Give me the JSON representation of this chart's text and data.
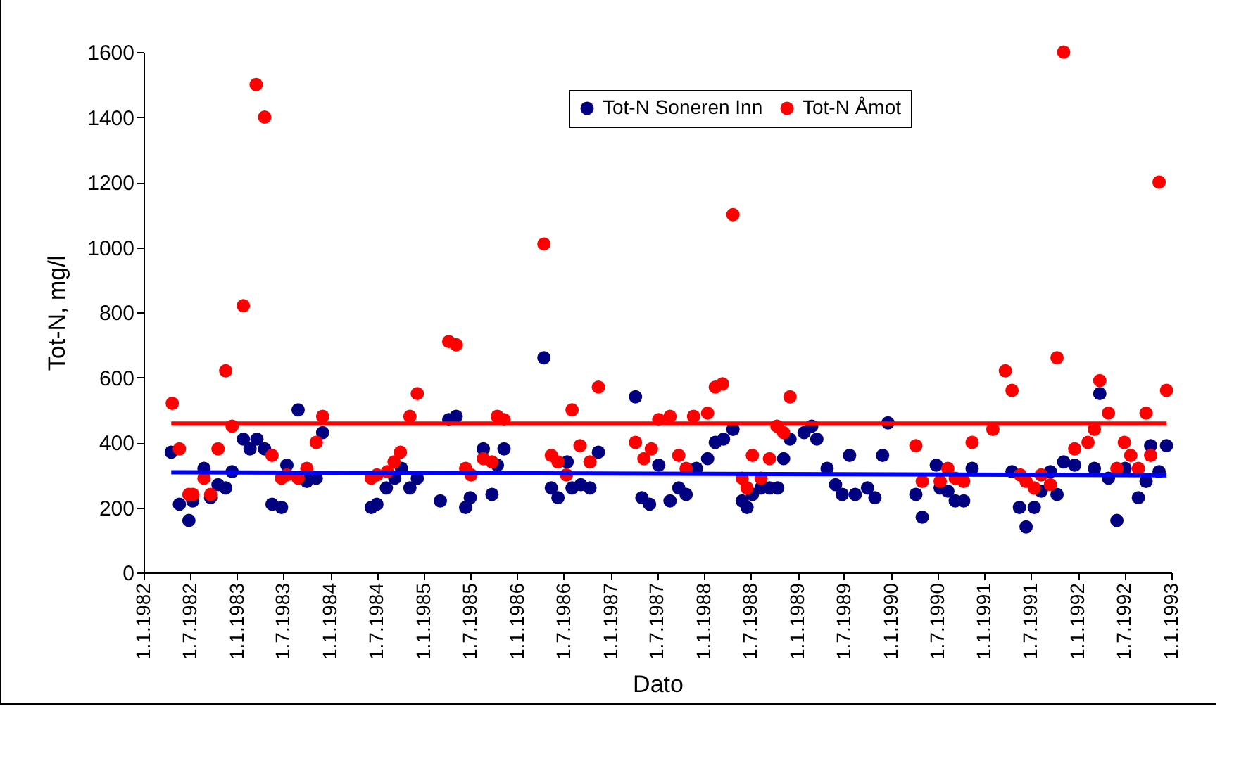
{
  "chart_data": {
    "type": "scatter",
    "xlabel": "Dato",
    "ylabel": "Tot-N, mg/l",
    "xlim": [
      "1982-01-01",
      "1993-01-01"
    ],
    "xticks": [
      {
        "value": "1982-01-01",
        "label": "1.1.1982"
      },
      {
        "value": "1982-07-01",
        "label": "1.7.1982"
      },
      {
        "value": "1983-01-01",
        "label": "1.1.1983"
      },
      {
        "value": "1983-07-01",
        "label": "1.7.1983"
      },
      {
        "value": "1984-01-01",
        "label": "1.1.1984"
      },
      {
        "value": "1984-07-01",
        "label": "1.7.1984"
      },
      {
        "value": "1985-01-01",
        "label": "1.1.1985"
      },
      {
        "value": "1985-07-01",
        "label": "1.7.1985"
      },
      {
        "value": "1986-01-01",
        "label": "1.1.1986"
      },
      {
        "value": "1986-07-01",
        "label": "1.7.1986"
      },
      {
        "value": "1987-01-01",
        "label": "1.1.1987"
      },
      {
        "value": "1987-07-01",
        "label": "1.7.1987"
      },
      {
        "value": "1988-01-01",
        "label": "1.1.1988"
      },
      {
        "value": "1988-07-01",
        "label": "1.7.1988"
      },
      {
        "value": "1989-01-01",
        "label": "1.1.1989"
      },
      {
        "value": "1989-07-01",
        "label": "1.7.1989"
      },
      {
        "value": "1990-01-01",
        "label": "1.1.1990"
      },
      {
        "value": "1990-07-01",
        "label": "1.7.1990"
      },
      {
        "value": "1991-01-01",
        "label": "1.1.1991"
      },
      {
        "value": "1991-07-01",
        "label": "1.7.1991"
      },
      {
        "value": "1992-01-01",
        "label": "1.1.1992"
      },
      {
        "value": "1992-07-01",
        "label": "1.7.1992"
      },
      {
        "value": "1993-01-01",
        "label": "1.1.1993"
      }
    ],
    "ylim": [
      0,
      1600
    ],
    "yticks": [
      0,
      200,
      400,
      600,
      800,
      1000,
      1200,
      1400,
      1600
    ],
    "grid": false,
    "legend": "top right",
    "marker": "circle",
    "series": [
      {
        "name": "Tot-N Soneren Inn",
        "color": "#000080",
        "type": "scatter",
        "x": [
          "1982-04-19",
          "1982-05-21",
          "1982-06-27",
          "1982-07-12",
          "1982-08-25",
          "1982-09-20",
          "1982-10-19",
          "1982-11-18",
          "1982-12-13",
          "1983-01-26",
          "1983-02-21",
          "1983-03-20",
          "1983-04-19",
          "1983-05-18",
          "1983-06-24",
          "1983-07-15",
          "1983-08-28",
          "1983-10-01",
          "1983-11-07",
          "1983-12-02",
          "1984-06-09",
          "1984-07-01",
          "1984-08-07",
          "1984-09-09",
          "1984-10-05",
          "1984-11-07",
          "1984-12-06",
          "1985-03-06",
          "1985-04-08",
          "1985-05-07",
          "1985-06-13",
          "1985-07-01",
          "1985-08-21",
          "1985-09-24",
          "1985-10-15",
          "1985-11-10",
          "1986-04-15",
          "1986-05-14",
          "1986-06-09",
          "1986-07-15",
          "1986-08-03",
          "1986-09-06",
          "1986-10-12",
          "1986-11-14",
          "1987-04-08",
          "1987-05-03",
          "1987-06-02",
          "1987-07-08",
          "1987-08-21",
          "1987-09-24",
          "1987-10-23",
          "1987-12-02",
          "1988-01-15",
          "1988-02-14",
          "1988-03-17",
          "1988-04-23",
          "1988-05-29",
          "1988-06-17",
          "1988-07-08",
          "1988-08-11",
          "1988-09-13",
          "1988-10-15",
          "1988-11-07",
          "1988-12-02",
          "1989-01-26",
          "1989-02-25",
          "1989-03-17",
          "1989-04-26",
          "1989-05-29",
          "1989-06-24",
          "1989-07-23",
          "1989-08-14",
          "1989-10-01",
          "1989-10-30",
          "1989-11-29",
          "1989-12-20",
          "1990-04-08",
          "1990-05-03",
          "1990-06-27",
          "1990-07-12",
          "1990-08-11",
          "1990-09-09",
          "1990-10-12",
          "1990-11-14",
          "1991-04-19",
          "1991-05-18",
          "1991-06-13",
          "1991-07-15",
          "1991-08-11",
          "1991-09-16",
          "1991-10-12",
          "1991-11-07",
          "1991-12-20",
          "1992-03-06",
          "1992-03-27",
          "1992-04-30",
          "1992-06-02",
          "1992-07-04",
          "1992-08-25",
          "1992-09-24",
          "1992-10-12",
          "1992-11-14",
          "1992-12-13"
        ],
        "values": [
          370,
          210,
          160,
          220,
          320,
          230,
          270,
          260,
          310,
          410,
          380,
          410,
          380,
          210,
          200,
          330,
          500,
          280,
          290,
          430,
          200,
          210,
          260,
          290,
          320,
          260,
          290,
          220,
          470,
          480,
          200,
          230,
          380,
          240,
          330,
          380,
          660,
          260,
          230,
          340,
          260,
          270,
          260,
          370,
          540,
          230,
          210,
          330,
          220,
          260,
          240,
          320,
          350,
          400,
          410,
          440,
          220,
          200,
          240,
          260,
          260,
          260,
          350,
          410,
          430,
          450,
          410,
          320,
          270,
          240,
          360,
          240,
          260,
          230,
          360,
          460,
          240,
          170,
          330,
          260,
          250,
          220,
          220,
          320,
          310,
          200,
          140,
          200,
          250,
          310,
          240,
          340,
          330,
          320,
          550,
          290,
          160,
          320,
          230,
          280,
          390,
          310,
          390
        ]
      },
      {
        "name": "Tot-N Åmot",
        "color": "#ff0000",
        "type": "scatter",
        "x": [
          "1982-04-23",
          "1982-05-21",
          "1982-06-27",
          "1982-07-12",
          "1982-08-25",
          "1982-09-20",
          "1982-10-19",
          "1982-11-18",
          "1982-12-13",
          "1983-01-26",
          "1983-03-17",
          "1983-04-19",
          "1983-05-18",
          "1983-06-24",
          "1983-07-15",
          "1983-08-28",
          "1983-10-01",
          "1983-11-07",
          "1983-12-02",
          "1984-06-09",
          "1984-07-01",
          "1984-08-11",
          "1984-09-06",
          "1984-10-01",
          "1984-11-07",
          "1984-12-06",
          "1985-04-08",
          "1985-05-07",
          "1985-06-13",
          "1985-07-04",
          "1985-08-21",
          "1985-09-24",
          "1985-10-15",
          "1985-11-10",
          "1986-04-15",
          "1986-05-14",
          "1986-06-09",
          "1986-07-12",
          "1986-08-03",
          "1986-09-03",
          "1986-10-12",
          "1986-11-14",
          "1987-04-08",
          "1987-05-11",
          "1987-06-09",
          "1987-07-08",
          "1987-08-21",
          "1987-09-24",
          "1987-10-23",
          "1987-11-21",
          "1988-01-15",
          "1988-02-14",
          "1988-03-13",
          "1988-04-23",
          "1988-05-29",
          "1988-06-17",
          "1988-07-08",
          "1988-08-11",
          "1988-09-13",
          "1988-10-12",
          "1988-11-07",
          "1988-12-02",
          "1990-04-08",
          "1990-05-03",
          "1990-07-12",
          "1990-08-11",
          "1990-09-09",
          "1990-10-12",
          "1990-11-14",
          "1991-02-03",
          "1991-03-24",
          "1991-04-19",
          "1991-05-21",
          "1991-06-13",
          "1991-07-15",
          "1991-08-11",
          "1991-09-16",
          "1991-10-12",
          "1991-11-07",
          "1991-12-20",
          "1992-02-10",
          "1992-03-06",
          "1992-03-27",
          "1992-04-30",
          "1992-06-02",
          "1992-07-01",
          "1992-07-26",
          "1992-08-25",
          "1992-09-24",
          "1992-10-12",
          "1992-11-14",
          "1992-12-13"
        ],
        "values": [
          520,
          380,
          240,
          240,
          290,
          240,
          380,
          620,
          450,
          820,
          1500,
          1400,
          360,
          290,
          300,
          290,
          320,
          400,
          480,
          290,
          300,
          310,
          340,
          370,
          480,
          550,
          710,
          700,
          320,
          300,
          350,
          340,
          480,
          470,
          1010,
          360,
          340,
          300,
          500,
          390,
          340,
          570,
          400,
          350,
          380,
          470,
          480,
          360,
          320,
          480,
          490,
          570,
          580,
          1100,
          290,
          260,
          360,
          290,
          350,
          450,
          430,
          540,
          390,
          280,
          280,
          320,
          290,
          280,
          400,
          440,
          620,
          560,
          300,
          280,
          260,
          300,
          270,
          660,
          1600,
          380,
          400,
          440,
          590,
          490,
          320,
          400,
          360,
          320,
          490,
          360,
          1200,
          560
        ]
      },
      {
        "color": "#0000ff",
        "type": "line",
        "marker": "none",
        "x": [
          "1982-04-19",
          "1992-12-13"
        ],
        "values": [
          308,
          299
        ]
      },
      {
        "color": "#ff0000",
        "type": "line",
        "marker": "none",
        "x": [
          "1982-04-19",
          "1992-12-13"
        ],
        "values": [
          458,
          458
        ]
      }
    ]
  }
}
